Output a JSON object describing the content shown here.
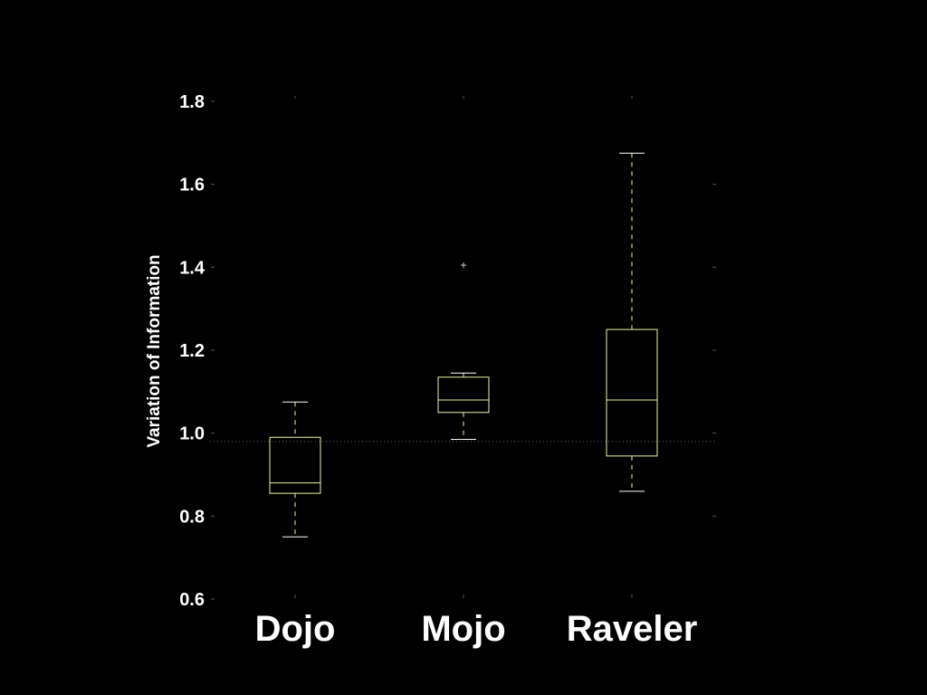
{
  "chart_data": {
    "type": "boxplot",
    "title": "",
    "xlabel": "",
    "ylabel": "Variation of Information",
    "ylim": [
      0.6,
      1.8
    ],
    "yticks": [
      "0.6",
      "0.8",
      "1.0",
      "1.2",
      "1.4",
      "1.6",
      "1.8"
    ],
    "grid": false,
    "reference_line": 0.98,
    "categories": [
      "Dojo",
      "Mojo",
      "Raveler"
    ],
    "boxes": [
      {
        "name": "Dojo",
        "whisker_low": 0.75,
        "q1": 0.855,
        "median": 0.88,
        "q3": 0.99,
        "whisker_high": 1.075,
        "outliers": []
      },
      {
        "name": "Mojo",
        "whisker_low": 0.985,
        "q1": 1.05,
        "median": 1.08,
        "q3": 1.135,
        "whisker_high": 1.145,
        "outliers": [
          1.405
        ]
      },
      {
        "name": "Raveler",
        "whisker_low": 0.86,
        "q1": 0.945,
        "median": 1.08,
        "q3": 1.25,
        "whisker_high": 1.675,
        "outliers": []
      }
    ],
    "colors": {
      "background": "#000000",
      "box": "#f2f2a8",
      "text": "#ffffff",
      "reference_line": "#666666"
    }
  }
}
